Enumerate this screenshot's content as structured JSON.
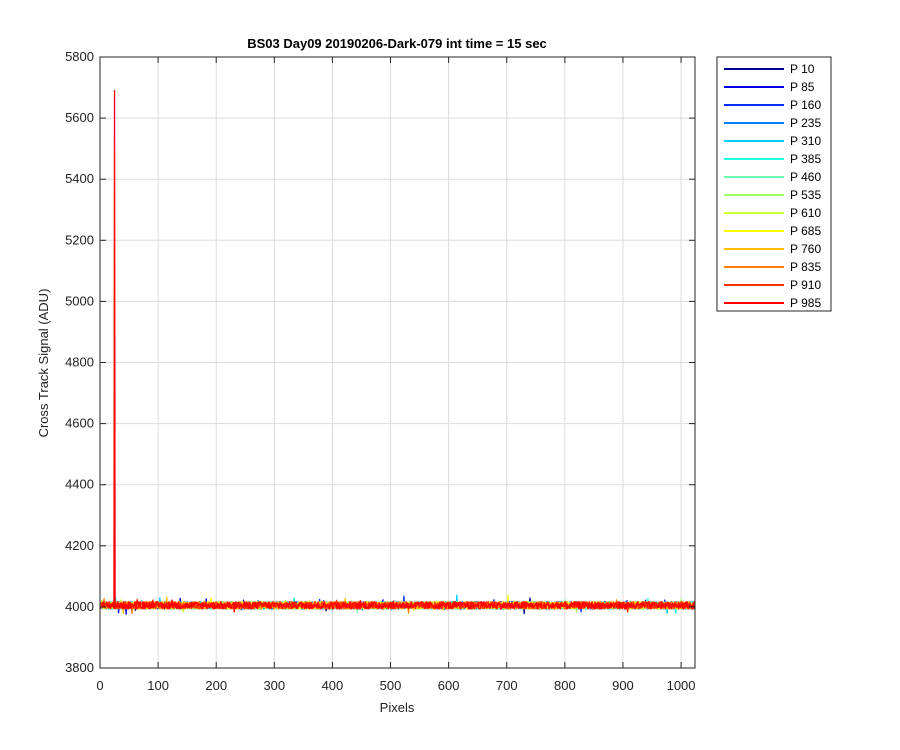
{
  "chart_data": {
    "type": "line",
    "title": "BS03 Day09 20190206-Dark-079 int time = 15 sec",
    "xlabel": "Pixels",
    "ylabel": "Cross Track Signal (ADU)",
    "xlim": [
      0,
      1024
    ],
    "ylim": [
      3800,
      5800
    ],
    "xticks": [
      0,
      100,
      200,
      300,
      400,
      500,
      600,
      700,
      800,
      900,
      1000
    ],
    "yticks": [
      3800,
      4000,
      4200,
      4400,
      4600,
      4800,
      5000,
      5200,
      5400,
      5600,
      5800
    ],
    "grid": true,
    "legend_position": "outside-top-right",
    "baseline": 4005,
    "noise_amplitude": 12,
    "spike": {
      "x": 25,
      "y": 5690,
      "series": "P 985"
    },
    "series": [
      {
        "name": "P 10",
        "color": "#00008f"
      },
      {
        "name": "P 85",
        "color": "#0000df"
      },
      {
        "name": "P 160",
        "color": "#0030ff"
      },
      {
        "name": "P 235",
        "color": "#0080ff"
      },
      {
        "name": "P 310",
        "color": "#00cfff"
      },
      {
        "name": "P 385",
        "color": "#20ffdf"
      },
      {
        "name": "P 460",
        "color": "#70ffaf"
      },
      {
        "name": "P 535",
        "color": "#9fff60"
      },
      {
        "name": "P 610",
        "color": "#cfff30"
      },
      {
        "name": "P 685",
        "color": "#ffff00"
      },
      {
        "name": "P 760",
        "color": "#ffbf00"
      },
      {
        "name": "P 835",
        "color": "#ff7f00"
      },
      {
        "name": "P 910",
        "color": "#ff3000"
      },
      {
        "name": "P 985",
        "color": "#ff0000"
      }
    ]
  }
}
